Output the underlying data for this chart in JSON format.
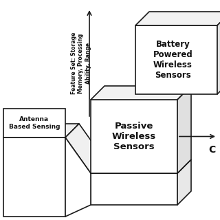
{
  "bg_color": "#ffffff",
  "box1_label": "Antenna\nBased Sensing",
  "box2_label": "Passive\nWireless\nSensors",
  "box3_label": "Battery\nPowered\nWireless\nSensors",
  "cost_label": "C",
  "axis_label": "Feature Set: Storage\nMemory, Processing\nAbility, Range",
  "linecolor": "#1a1a1a",
  "textcolor": "#111111",
  "lw": 1.2
}
